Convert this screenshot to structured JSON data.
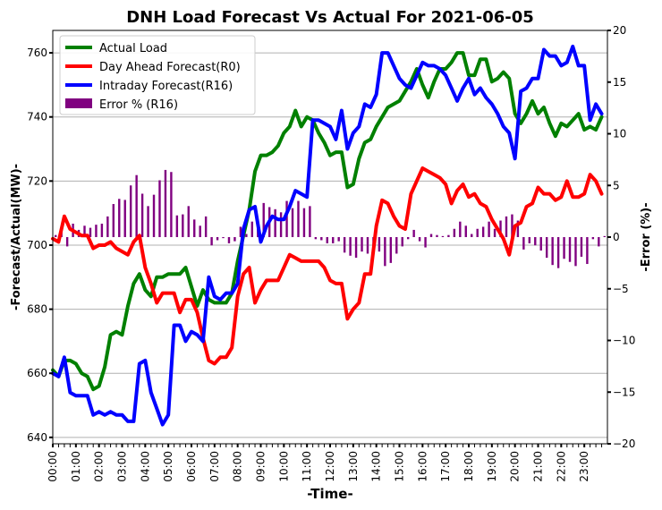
{
  "chart_data": {
    "type": "line",
    "title": "DNH Load Forecast Vs Actual For 2021-06-05",
    "xlabel": "-Time-",
    "ylabel": "-Forecast/Actual(MW)-",
    "y2label": "-Error (%)-",
    "ylim": [
      638,
      767
    ],
    "y2lim": [
      -20,
      20
    ],
    "yticks": [
      640,
      660,
      680,
      700,
      720,
      740,
      760
    ],
    "y2ticks": [
      -20,
      -15,
      -10,
      -5,
      0,
      5,
      10,
      15,
      20
    ],
    "xticks": [
      "00:00",
      "01:00",
      "02:00",
      "03:00",
      "04:00",
      "05:00",
      "06:00",
      "07:00",
      "08:00",
      "09:00",
      "10:00",
      "11:00",
      "12:00",
      "13:00",
      "14:00",
      "15:00",
      "16:00",
      "17:00",
      "18:00",
      "19:00",
      "20:00",
      "21:00",
      "22:00",
      "23:00"
    ],
    "interval": "15 min",
    "grid": "horizontal",
    "legend_position": "top-left",
    "series": [
      {
        "name": "Actual Load",
        "color": "#008000",
        "axis": "left",
        "values": [
          661,
          659,
          664,
          664,
          663,
          660,
          659,
          655,
          656,
          662,
          672,
          673,
          672,
          681,
          688,
          691,
          686,
          684,
          690,
          690,
          691,
          691,
          691,
          693,
          687,
          681,
          686,
          683,
          682,
          682,
          682,
          685,
          695,
          703,
          711,
          723,
          728,
          728,
          729,
          731,
          735,
          737,
          742,
          737,
          740,
          739,
          735,
          732,
          728,
          729,
          729,
          718,
          719,
          727,
          732,
          733,
          737,
          740,
          743,
          744,
          745,
          748,
          751,
          755,
          750,
          746,
          751,
          755,
          755,
          757,
          760,
          760,
          753,
          753,
          758,
          758,
          751,
          752,
          754,
          752,
          741,
          738,
          741,
          745,
          741,
          743,
          738,
          734,
          738,
          737,
          739,
          741,
          736,
          737,
          736,
          740
        ]
      },
      {
        "name": "Day Ahead Forecast(R0)",
        "color": "#ff0000",
        "axis": "left",
        "values": [
          702,
          701,
          709,
          705,
          704,
          703,
          703,
          699,
          700,
          700,
          701,
          699,
          698,
          697,
          701,
          703,
          693,
          688,
          682,
          685,
          685,
          685,
          679,
          683,
          683,
          679,
          671,
          664,
          663,
          665,
          665,
          668,
          684,
          691,
          693,
          682,
          686,
          689,
          689,
          689,
          693,
          697,
          696,
          695,
          695,
          695,
          695,
          693,
          689,
          688,
          688,
          677,
          680,
          682,
          691,
          691,
          706,
          714,
          713,
          709,
          706,
          705,
          716,
          720,
          724,
          723,
          722,
          721,
          719,
          713,
          717,
          719,
          715,
          716,
          713,
          712,
          708,
          705,
          702,
          697,
          706,
          707,
          712,
          713,
          718,
          716,
          716,
          714,
          715,
          720,
          715,
          715,
          716,
          722,
          720,
          716
        ]
      },
      {
        "name": "Intraday Forecast(R16)",
        "color": "#0000ff",
        "axis": "left",
        "values": [
          660,
          659,
          665,
          654,
          653,
          653,
          653,
          647,
          648,
          647,
          648,
          647,
          647,
          645,
          645,
          663,
          664,
          654,
          649,
          644,
          647,
          675,
          675,
          670,
          673,
          672,
          670,
          690,
          684,
          683,
          685,
          685,
          688,
          705,
          711,
          712,
          701,
          706,
          709,
          708,
          708,
          712,
          717,
          716,
          715,
          739,
          739,
          738,
          737,
          733,
          742,
          730,
          735,
          737,
          744,
          743,
          747,
          760,
          760,
          756,
          752,
          750,
          749,
          753,
          757,
          756,
          756,
          755,
          753,
          749,
          745,
          749,
          752,
          747,
          749,
          746,
          744,
          741,
          737,
          735,
          727,
          748,
          749,
          752,
          752,
          761,
          759,
          759,
          756,
          757,
          762,
          756,
          756,
          739,
          744,
          741
        ]
      },
      {
        "name": "Error % (R16)",
        "color": "#800080",
        "axis": "right",
        "type": "bar",
        "values": [
          0.2,
          0.5,
          -0.9,
          1.3,
          0.7,
          1.1,
          0.9,
          1.2,
          1.3,
          2.0,
          3.2,
          3.7,
          3.6,
          5.0,
          6.0,
          4.2,
          3.0,
          4.1,
          5.5,
          6.5,
          6.3,
          2.1,
          2.2,
          3.0,
          1.7,
          1.1,
          2.0,
          -0.8,
          -0.3,
          -0.1,
          -0.6,
          -0.4,
          1.0,
          0.3,
          1.5,
          1.3,
          3.3,
          2.9,
          2.7,
          2.4,
          3.5,
          2.8,
          3.5,
          2.8,
          3.0,
          -0.2,
          -0.3,
          -0.6,
          -0.6,
          -0.4,
          -1.5,
          -1.8,
          -2.0,
          -1.4,
          -1.6,
          -1.5,
          -1.4,
          -2.8,
          -2.5,
          -1.6,
          -0.9,
          -0.2,
          0.7,
          -0.4,
          -1.0,
          0.3,
          0.2,
          0.1,
          0.2,
          0.8,
          1.5,
          1.1,
          0.3,
          0.8,
          1.0,
          1.5,
          0.8,
          1.6,
          2.0,
          2.2,
          1.6,
          -1.2,
          -0.6,
          -0.8,
          -1.3,
          -2.0,
          -2.7,
          -3.0,
          -2.1,
          -2.4,
          -2.8,
          -1.9,
          -2.6,
          -0.2,
          -0.9,
          0.1
        ]
      }
    ]
  }
}
